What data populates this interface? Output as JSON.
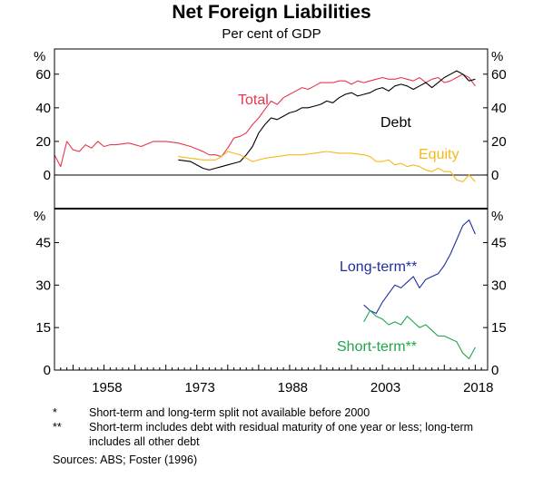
{
  "chart_data": {
    "type": "line",
    "title": "Net Foreign Liabilities",
    "subtitle": "Per cent of GDP",
    "xticks": [
      "1958",
      "1973",
      "1988",
      "2003",
      "2018"
    ],
    "xlim": [
      1950,
      2020
    ],
    "panels": [
      {
        "unit": "%",
        "ylim": [
          -20,
          75
        ],
        "yticks": [
          0,
          20,
          40,
          60
        ],
        "series": [
          {
            "name": "Total",
            "color": "#e8364d",
            "x": [
              1950,
              1951,
              1952,
              1953,
              1954,
              1955,
              1956,
              1957,
              1958,
              1959,
              1960,
              1962,
              1964,
              1966,
              1968,
              1970,
              1972,
              1974,
              1975,
              1976,
              1977,
              1978,
              1979,
              1980,
              1981,
              1982,
              1983,
              1984,
              1985,
              1986,
              1987,
              1988,
              1989,
              1990,
              1991,
              1992,
              1993,
              1994,
              1995,
              1996,
              1997,
              1998,
              1999,
              2000,
              2001,
              2002,
              2003,
              2004,
              2005,
              2006,
              2007,
              2008,
              2009,
              2010,
              2011,
              2012,
              2013,
              2014,
              2015,
              2016,
              2017,
              2018
            ],
            "y": [
              12,
              5,
              20,
              15,
              14,
              18,
              16,
              20,
              17,
              18,
              18,
              19,
              17,
              20,
              20,
              19,
              17,
              14,
              12,
              12,
              11,
              16,
              22,
              23,
              25,
              30,
              34,
              39,
              44,
              42,
              46,
              48,
              50,
              52,
              51,
              53,
              55,
              55,
              55,
              56,
              56,
              54,
              56,
              55,
              56,
              57,
              58,
              57,
              57,
              58,
              57,
              56,
              58,
              55,
              57,
              58,
              55,
              56,
              58,
              60,
              58,
              53
            ]
          },
          {
            "name": "Debt",
            "color": "#000000",
            "x": [
              1970,
              1972,
              1974,
              1975,
              1976,
              1977,
              1978,
              1979,
              1980,
              1981,
              1982,
              1983,
              1984,
              1985,
              1986,
              1987,
              1988,
              1989,
              1990,
              1991,
              1992,
              1993,
              1994,
              1995,
              1996,
              1997,
              1998,
              1999,
              2000,
              2001,
              2002,
              2003,
              2004,
              2005,
              2006,
              2007,
              2008,
              2009,
              2010,
              2011,
              2012,
              2013,
              2014,
              2015,
              2016,
              2017,
              2018
            ],
            "y": [
              9,
              8,
              4,
              3,
              4,
              5,
              6,
              7,
              8,
              12,
              17,
              25,
              30,
              34,
              33,
              35,
              37,
              38,
              40,
              40,
              41,
              42,
              44,
              43,
              46,
              48,
              49,
              47,
              48,
              49,
              51,
              52,
              50,
              53,
              54,
              53,
              51,
              53,
              55,
              52,
              55,
              58,
              60,
              62,
              60,
              56,
              57
            ]
          },
          {
            "name": "Equity",
            "color": "#f6b818",
            "x": [
              1970,
              1972,
              1974,
              1976,
              1977,
              1978,
              1979,
              1980,
              1981,
              1982,
              1984,
              1986,
              1988,
              1990,
              1992,
              1994,
              1996,
              1998,
              2000,
              2001,
              2002,
              2003,
              2004,
              2005,
              2006,
              2007,
              2008,
              2009,
              2010,
              2011,
              2012,
              2013,
              2014,
              2015,
              2016,
              2017,
              2018
            ],
            "y": [
              11,
              10,
              9,
              9,
              11,
              14,
              13,
              12,
              10,
              8,
              10,
              11,
              12,
              12,
              13,
              14,
              13,
              13,
              12,
              11,
              8,
              8,
              9,
              6,
              7,
              5,
              6,
              5,
              3,
              2,
              4,
              2,
              2,
              -3,
              -4,
              0,
              -4
            ]
          }
        ]
      },
      {
        "unit": "%",
        "ylim": [
          0,
          57
        ],
        "yticks": [
          0,
          15,
          30,
          45
        ],
        "series": [
          {
            "name": "Long-term**",
            "color": "#1e2fa0",
            "x": [
              2000,
              2001,
              2002,
              2003,
              2004,
              2005,
              2006,
              2007,
              2008,
              2009,
              2010,
              2011,
              2012,
              2013,
              2014,
              2015,
              2016,
              2017,
              2018
            ],
            "y": [
              23,
              21,
              20,
              24,
              27,
              30,
              29,
              31,
              33,
              29,
              32,
              33,
              34,
              37,
              41,
              46,
              51,
              53,
              48
            ]
          },
          {
            "name": "Short-term**",
            "color": "#1fa64a",
            "x": [
              2000,
              2001,
              2002,
              2003,
              2004,
              2005,
              2006,
              2007,
              2008,
              2009,
              2010,
              2011,
              2012,
              2013,
              2014,
              2015,
              2016,
              2017,
              2018
            ],
            "y": [
              17,
              21,
              19,
              18,
              16,
              17,
              16,
              19,
              17,
              15,
              16,
              14,
              12,
              12,
              11,
              10,
              6,
              4,
              8
            ]
          }
        ]
      }
    ]
  },
  "notes": [
    {
      "marker": "*",
      "text": "Short-term and long-term split not available before 2000"
    },
    {
      "marker": "**",
      "text": "Short-term includes debt with residual maturity of one year or less; long-term includes all other debt"
    }
  ],
  "source": "Sources:   ABS; Foster (1996)"
}
